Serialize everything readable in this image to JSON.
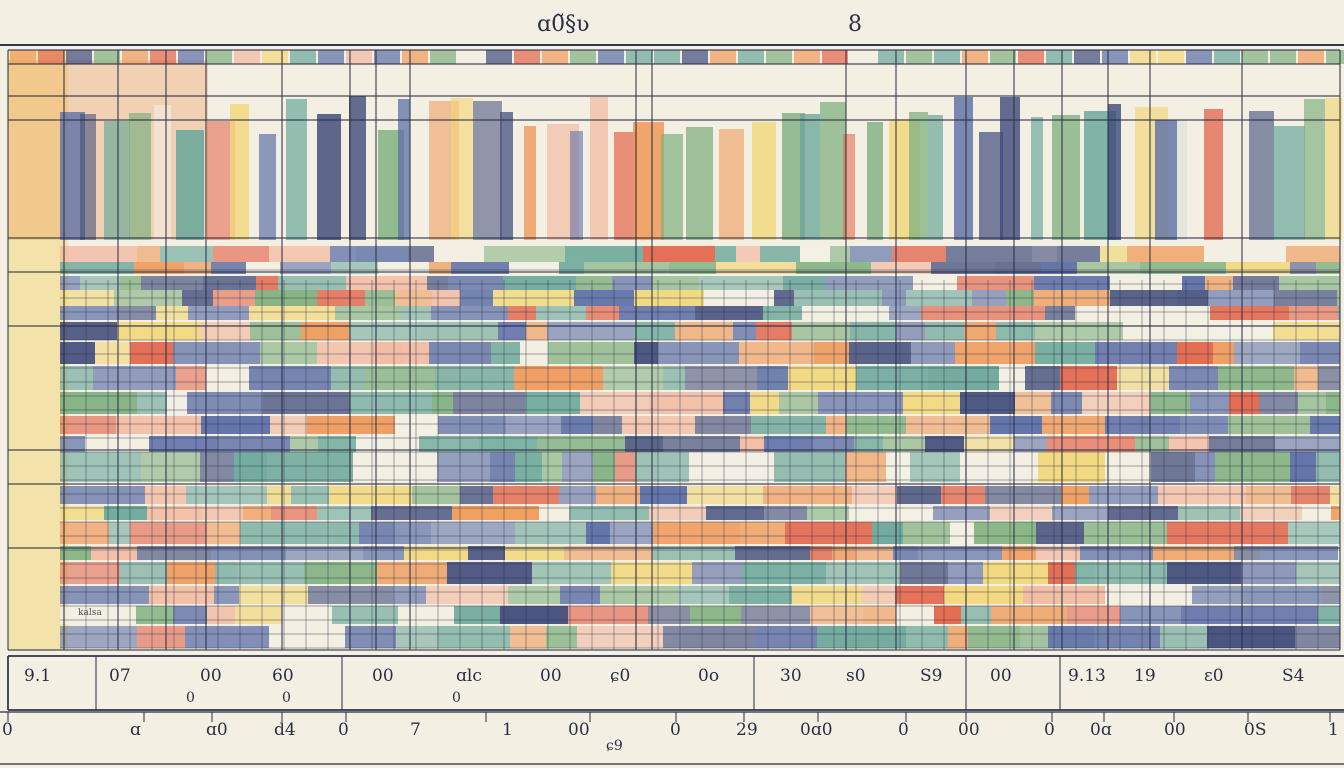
{
  "header": {
    "title_left": "ɑ0̃§ʋ",
    "title_right": "8"
  },
  "small_tag": "kalsa",
  "row1_labels": [
    "9.1",
    "07",
    "00",
    "60",
    "00",
    "ɑlc",
    "00",
    "ɕ0",
    "0o",
    "30",
    "s0",
    "S9",
    "00",
    "9.13",
    "19",
    "ɛ0",
    "S4"
  ],
  "row1_sub": [
    "0",
    "0",
    "0"
  ],
  "row2_labels": [
    "0",
    "ɑ",
    "ɑ0",
    "d4",
    "0",
    "7",
    "1",
    "00",
    "0",
    "29",
    "0ɑ0",
    "0",
    "00",
    "0",
    "0ɑ",
    "00",
    "0S",
    "1"
  ],
  "row2_sub": "ɕ9",
  "palette": {
    "blue": "#5b6ea6",
    "navy": "#3e4a7a",
    "green": "#7fb07f",
    "teal": "#6aa79a",
    "yellow": "#f2d77a",
    "orange": "#ef9a5a",
    "red": "#e2644a",
    "pink": "#f3b9a0",
    "cream": "#f3efe3",
    "grid": "#2a2f45"
  }
}
